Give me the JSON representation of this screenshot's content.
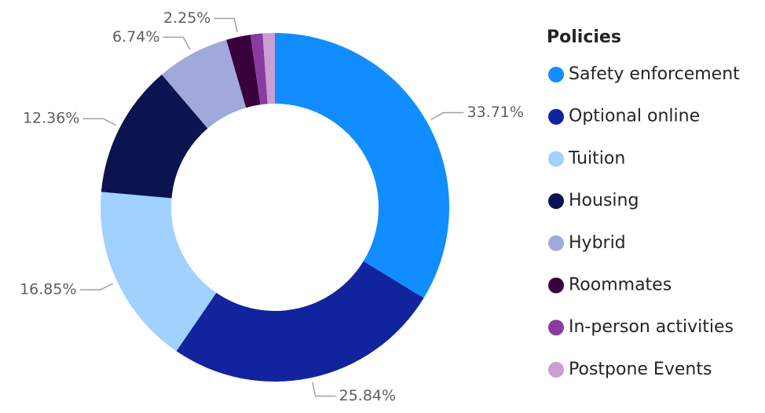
{
  "chart_data": {
    "type": "donut",
    "legend_title": "Policies",
    "categories": [
      "Safety enforcement",
      "Optional online",
      "Tuition",
      "Housing",
      "Hybrid",
      "Roommates",
      "In-person activities",
      "Postpone Events"
    ],
    "values": [
      33.71,
      25.84,
      16.85,
      12.36,
      6.74,
      2.25,
      1.12,
      1.12
    ],
    "value_labels": [
      "33.71%",
      "25.84%",
      "16.85%",
      "12.36%",
      "6.74%",
      "2.25%",
      null,
      null
    ],
    "colors": [
      "#118DFF",
      "#12239E",
      "#A0D1FF",
      "#0B1450",
      "#A0A8DC",
      "#38003C",
      "#8A3C9E",
      "#C99ED2"
    ],
    "legend": "right"
  }
}
